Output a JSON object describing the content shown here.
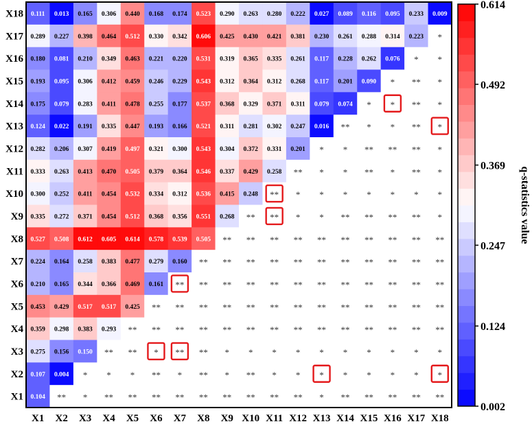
{
  "chart_data": {
    "type": "heatmap",
    "title": "",
    "row_labels": [
      "X18",
      "X17",
      "X16",
      "X15",
      "X14",
      "X13",
      "X12",
      "X11",
      "X10",
      "X9",
      "X8",
      "X7",
      "X6",
      "X5",
      "X4",
      "X3",
      "X2",
      "X1"
    ],
    "col_labels": [
      "X1",
      "X2",
      "X3",
      "X4",
      "X5",
      "X6",
      "X7",
      "X8",
      "X9",
      "X10",
      "X11",
      "X12",
      "X13",
      "X14",
      "X15",
      "X16",
      "X17",
      "X18"
    ],
    "values": [
      [
        "0.111",
        "0.013",
        "0.165",
        "0.306",
        "0.440",
        "0.168",
        "0.174",
        "0.523",
        "0.290",
        "0.263",
        "0.280",
        "0.222",
        "0.027",
        "0.089",
        "0.116",
        "0.095",
        "0.233",
        "0.009"
      ],
      [
        "0.289",
        "0.227",
        "0.398",
        "0.464",
        "0.512",
        "0.330",
        "0.342",
        "0.606",
        "0.425",
        "0.430",
        "0.421",
        "0.381",
        "0.230",
        "0.261",
        "0.288",
        "0.314",
        "0.223",
        "*"
      ],
      [
        "0.180",
        "0.081",
        "0.210",
        "0.349",
        "0.463",
        "0.221",
        "0.220",
        "0.531",
        "0.319",
        "0.365",
        "0.335",
        "0.261",
        "0.117",
        "0.228",
        "0.262",
        "0.076",
        "*",
        "*"
      ],
      [
        "0.193",
        "0.095",
        "0.306",
        "0.412",
        "0.459",
        "0.246",
        "0.229",
        "0.543",
        "0.312",
        "0.364",
        "0.312",
        "0.268",
        "0.117",
        "0.201",
        "0.090",
        "*",
        "**",
        "*"
      ],
      [
        "0.175",
        "0.079",
        "0.283",
        "0.411",
        "0.478",
        "0.255",
        "0.177",
        "0.537",
        "0.368",
        "0.329",
        "0.371",
        "0.311",
        "0.079",
        "0.074",
        "*",
        "*",
        "**",
        "*"
      ],
      [
        "0.124",
        "0.022",
        "0.191",
        "0.335",
        "0.447",
        "0.193",
        "0.166",
        "0.521",
        "0.311",
        "0.281",
        "0.302",
        "0.247",
        "0.016",
        "**",
        "*",
        "*",
        "**",
        "*"
      ],
      [
        "0.282",
        "0.206",
        "0.307",
        "0.419",
        "0.497",
        "0.321",
        "0.300",
        "0.543",
        "0.304",
        "0.372",
        "0.331",
        "0.201",
        "*",
        "*",
        "**",
        "**",
        "**",
        "*"
      ],
      [
        "0.333",
        "0.263",
        "0.413",
        "0.470",
        "0.505",
        "0.379",
        "0.364",
        "0.546",
        "0.337",
        "0.429",
        "0.258",
        "**",
        "*",
        "*",
        "**",
        "*",
        "**",
        "*"
      ],
      [
        "0.300",
        "0.252",
        "0.411",
        "0.454",
        "0.532",
        "0.334",
        "0.312",
        "0.536",
        "0.415",
        "0.248",
        "**",
        "*",
        "*",
        "*",
        "*",
        "*",
        "*",
        "*"
      ],
      [
        "0.335",
        "0.272",
        "0.371",
        "0.454",
        "0.512",
        "0.368",
        "0.356",
        "0.551",
        "0.268",
        "**",
        "**",
        "*",
        "*",
        "**",
        "**",
        "**",
        "**",
        "*"
      ],
      [
        "0.527",
        "0.508",
        "0.612",
        "0.605",
        "0.614",
        "0.578",
        "0.539",
        "0.505",
        "**",
        "**",
        "**",
        "**",
        "**",
        "**",
        "**",
        "**",
        "**",
        "**"
      ],
      [
        "0.224",
        "0.164",
        "0.258",
        "0.383",
        "0.477",
        "0.279",
        "0.160",
        "**",
        "**",
        "**",
        "**",
        "**",
        "**",
        "**",
        "**",
        "**",
        "**",
        "**"
      ],
      [
        "0.210",
        "0.165",
        "0.344",
        "0.366",
        "0.469",
        "0.161",
        "**",
        "**",
        "**",
        "**",
        "**",
        "**",
        "**",
        "**",
        "**",
        "**",
        "**",
        "**"
      ],
      [
        "0.453",
        "0.429",
        "0.517",
        "0.517",
        "0.425",
        "**",
        "**",
        "**",
        "**",
        "**",
        "**",
        "**",
        "**",
        "**",
        "**",
        "**",
        "**",
        "**"
      ],
      [
        "0.359",
        "0.298",
        "0.383",
        "0.293",
        "**",
        "**",
        "**",
        "**",
        "**",
        "**",
        "**",
        "**",
        "**",
        "**",
        "**",
        "**",
        "**",
        "**"
      ],
      [
        "0.275",
        "0.156",
        "0.150",
        "**",
        "**",
        "*",
        "**",
        "**",
        "*",
        "*",
        "*",
        "*",
        "*",
        "*",
        "*",
        "*",
        "*",
        "*"
      ],
      [
        "0.107",
        "0.004",
        "*",
        "*",
        "*",
        "**",
        "*",
        "**",
        "*",
        "**",
        "*",
        "*",
        "*",
        "*",
        "*",
        "*",
        "*",
        "*"
      ],
      [
        "0.104",
        "**",
        "*",
        "**",
        "**",
        "**",
        "**",
        "**",
        "**",
        "**",
        "**",
        "**",
        "*",
        "**",
        "**",
        "**",
        "**",
        "**"
      ]
    ],
    "highlighted_cells": [
      {
        "row": "X14",
        "col": "X16"
      },
      {
        "row": "X13",
        "col": "X18"
      },
      {
        "row": "X10",
        "col": "X11"
      },
      {
        "row": "X9",
        "col": "X11"
      },
      {
        "row": "X6",
        "col": "X7"
      },
      {
        "row": "X3",
        "col": "X6"
      },
      {
        "row": "X3",
        "col": "X7"
      },
      {
        "row": "X2",
        "col": "X13"
      },
      {
        "row": "X2",
        "col": "X18"
      }
    ],
    "highlight_color": "#e41a1c",
    "colorbar": {
      "label": "q-statistics value",
      "min": 0.002,
      "max": 0.614,
      "ticks": [
        "0.614",
        "0.492",
        "0.369",
        "0.247",
        "0.124",
        "0.002"
      ],
      "tick_values": [
        0.614,
        0.492,
        0.369,
        0.247,
        0.124,
        0.002
      ],
      "low_color": "#0000ff",
      "mid_color": "#ffffff",
      "high_color": "#ff0000",
      "steps": 24
    }
  }
}
